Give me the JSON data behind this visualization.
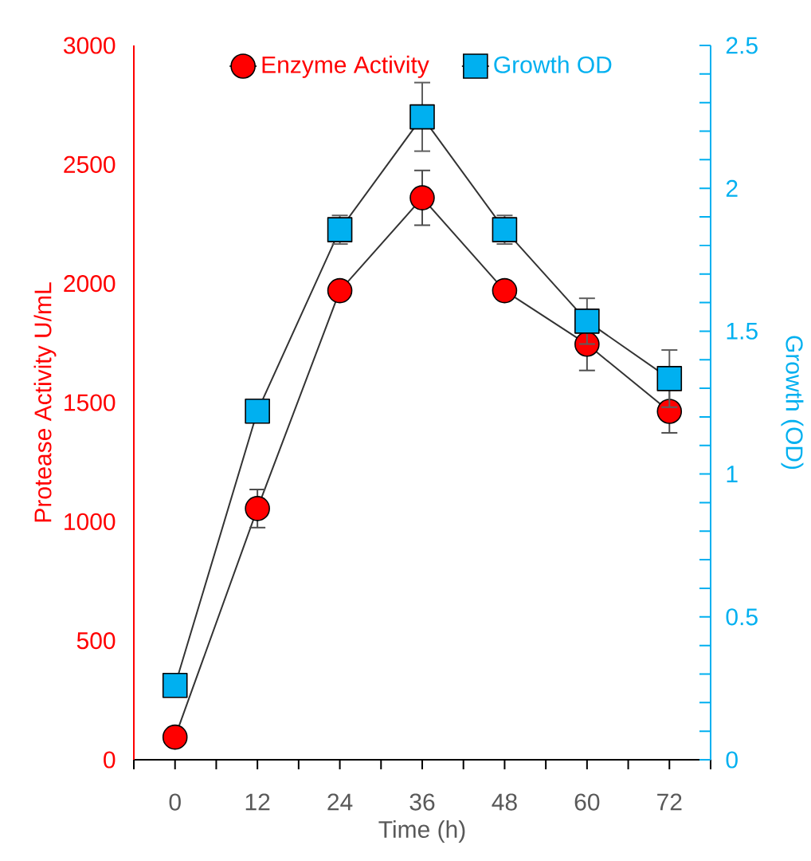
{
  "chart_data": {
    "type": "line",
    "xlabel": "Time (h)",
    "ylabel": "Protease Activity U/mL",
    "y2label": "Growth (OD)",
    "x": [
      0,
      12,
      24,
      36,
      48,
      60,
      72
    ],
    "xlim": [
      -6,
      78
    ],
    "xticks": [
      {
        "value": -6,
        "label": null
      },
      0,
      {
        "value": 6,
        "label": null
      },
      12,
      {
        "value": 18,
        "label": null
      },
      24,
      {
        "value": 30,
        "label": null
      },
      36,
      {
        "value": 42,
        "label": null
      },
      48,
      {
        "value": 54,
        "label": null
      },
      60,
      {
        "value": 66,
        "label": null
      },
      72,
      {
        "value": 78,
        "label": null
      }
    ],
    "ylim": [
      0,
      3000
    ],
    "yticks": [
      0,
      500,
      1000,
      1500,
      2000,
      2500,
      3000
    ],
    "y2lim": [
      0,
      2.5
    ],
    "y2ticks": [
      0,
      {
        "value": 0.1,
        "label": null
      },
      {
        "value": 0.2,
        "label": null
      },
      {
        "value": 0.3,
        "label": null
      },
      {
        "value": 0.4,
        "label": null
      },
      0.5,
      {
        "value": 0.6,
        "label": null
      },
      {
        "value": 0.7,
        "label": null
      },
      {
        "value": 0.8,
        "label": null
      },
      {
        "value": 0.9,
        "label": null
      },
      1,
      {
        "value": 1.1,
        "label": null
      },
      {
        "value": 1.2,
        "label": null
      },
      {
        "value": 1.3,
        "label": null
      },
      {
        "value": 1.4,
        "label": null
      },
      1.5,
      {
        "value": 1.6,
        "label": null
      },
      {
        "value": 1.7,
        "label": null
      },
      {
        "value": 1.8,
        "label": null
      },
      {
        "value": 1.9,
        "label": null
      },
      2,
      {
        "value": 2.1,
        "label": null
      },
      {
        "value": 2.2,
        "label": null
      },
      {
        "value": 2.3,
        "label": null
      },
      {
        "value": 2.4,
        "label": null
      },
      2.5
    ],
    "legend": "top",
    "series": [
      {
        "name": "Enzyme Activity",
        "color": "#ff0000",
        "marker": "circle",
        "values": [
          95,
          1055,
          1970,
          2360,
          1970,
          1745,
          1463
        ],
        "errors": [
          null,
          80,
          null,
          115,
          null,
          110,
          90
        ]
      },
      {
        "name": "Growth OD",
        "color": "#00b0f0",
        "marker": "square",
        "axis": "y2",
        "values": [
          0.26,
          1.22,
          1.855,
          2.25,
          1.855,
          1.535,
          1.334
        ],
        "errors": [
          null,
          null,
          0.05,
          0.12,
          0.05,
          0.08,
          0.1
        ]
      }
    ]
  }
}
